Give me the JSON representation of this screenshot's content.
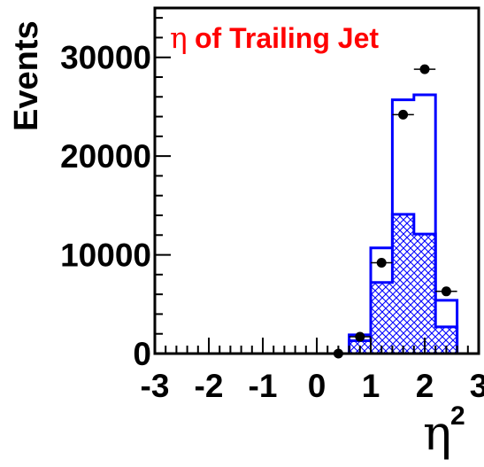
{
  "chart_data": {
    "type": "histogram",
    "title_symbol": "η",
    "title_text": "of Trailing Jet",
    "xlabel": "η",
    "xlabel_sup": "2",
    "ylabel": "Events",
    "xlim": [
      -3,
      3
    ],
    "ylim": [
      0,
      35000
    ],
    "x_ticks": [
      "-3",
      "-2",
      "-1",
      "0",
      "1",
      "2",
      "3"
    ],
    "y_ticks": [
      "0",
      "10000",
      "20000",
      "30000"
    ],
    "bin_edges": [
      -3.0,
      -2.6,
      -2.2,
      -1.8,
      -1.4,
      -1.0,
      -0.6,
      -0.2,
      0.2,
      0.6,
      1.0,
      1.4,
      1.8,
      2.2,
      2.6,
      3.0
    ],
    "series": [
      {
        "values": [
          0,
          0,
          0,
          0,
          0,
          0,
          0,
          0,
          0,
          1900,
          10700,
          25700,
          26200,
          5400,
          0
        ]
      },
      {
        "values": [
          0,
          0,
          0,
          0,
          0,
          0,
          0,
          0,
          0,
          1300,
          7200,
          14100,
          12100,
          2700,
          0
        ]
      }
    ],
    "data_points": [
      {
        "x": 0.4,
        "y": 0
      },
      {
        "x": 0.8,
        "y": 1700
      },
      {
        "x": 1.2,
        "y": 9200
      },
      {
        "x": 1.6,
        "y": 24200
      },
      {
        "x": 2.0,
        "y": 28800
      },
      {
        "x": 2.4,
        "y": 6300
      }
    ],
    "colors": {
      "mc": "#0000ff",
      "data": "#000000",
      "title": "#ff0000"
    },
    "grid": false
  }
}
